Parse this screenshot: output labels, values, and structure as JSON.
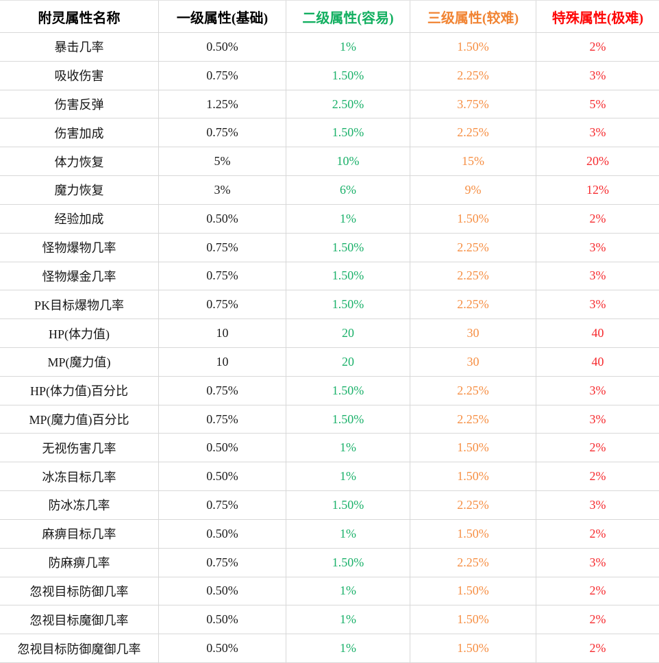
{
  "colors": {
    "level2_green": "#1bb16a",
    "level3_orange": "#f68f44",
    "special_red": "#f62a2e",
    "header_green": "#12af60",
    "header_orange": "#f18433",
    "header_red": "#fe0606",
    "gridline_gray": "#d8d8d8",
    "text_black": "#161616"
  },
  "chart_data": {
    "type": "table",
    "columns": [
      "附灵属性名称",
      "一级属性(基础)",
      "二级属性(容易)",
      "三级属性(较难)",
      "特殊属性(极难)"
    ],
    "rows": [
      [
        "暴击几率",
        "0.50%",
        "1%",
        "1.50%",
        "2%"
      ],
      [
        "吸收伤害",
        "0.75%",
        "1.50%",
        "2.25%",
        "3%"
      ],
      [
        "伤害反弹",
        "1.25%",
        "2.50%",
        "3.75%",
        "5%"
      ],
      [
        "伤害加成",
        "0.75%",
        "1.50%",
        "2.25%",
        "3%"
      ],
      [
        "体力恢复",
        "5%",
        "10%",
        "15%",
        "20%"
      ],
      [
        "魔力恢复",
        "3%",
        "6%",
        "9%",
        "12%"
      ],
      [
        "经验加成",
        "0.50%",
        "1%",
        "1.50%",
        "2%"
      ],
      [
        "怪物爆物几率",
        "0.75%",
        "1.50%",
        "2.25%",
        "3%"
      ],
      [
        "怪物爆金几率",
        "0.75%",
        "1.50%",
        "2.25%",
        "3%"
      ],
      [
        "PK目标爆物几率",
        "0.75%",
        "1.50%",
        "2.25%",
        "3%"
      ],
      [
        "HP(体力值)",
        "10",
        "20",
        "30",
        "40"
      ],
      [
        "MP(魔力值)",
        "10",
        "20",
        "30",
        "40"
      ],
      [
        "HP(体力值)百分比",
        "0.75%",
        "1.50%",
        "2.25%",
        "3%"
      ],
      [
        "MP(魔力值)百分比",
        "0.75%",
        "1.50%",
        "2.25%",
        "3%"
      ],
      [
        "无视伤害几率",
        "0.50%",
        "1%",
        "1.50%",
        "2%"
      ],
      [
        "冰冻目标几率",
        "0.50%",
        "1%",
        "1.50%",
        "2%"
      ],
      [
        "防冰冻几率",
        "0.75%",
        "1.50%",
        "2.25%",
        "3%"
      ],
      [
        "麻痹目标几率",
        "0.50%",
        "1%",
        "1.50%",
        "2%"
      ],
      [
        "防麻痹几率",
        "0.75%",
        "1.50%",
        "2.25%",
        "3%"
      ],
      [
        "忽视目标防御几率",
        "0.50%",
        "1%",
        "1.50%",
        "2%"
      ],
      [
        "忽视目标魔御几率",
        "0.50%",
        "1%",
        "1.50%",
        "2%"
      ],
      [
        "忽视目标防御魔御几率",
        "0.50%",
        "1%",
        "1.50%",
        "2%"
      ]
    ]
  }
}
